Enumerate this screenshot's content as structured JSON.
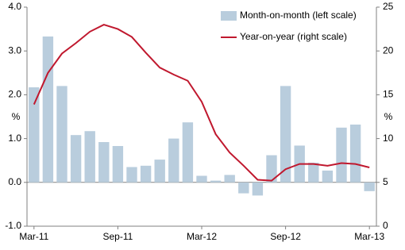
{
  "chart_data": {
    "type": "bar-line",
    "categories": [
      "Mar-11",
      null,
      null,
      null,
      null,
      null,
      "Sep-11",
      null,
      null,
      null,
      null,
      null,
      "Mar-12",
      null,
      null,
      null,
      null,
      null,
      "Sep-12",
      null,
      null,
      null,
      null,
      null,
      "Mar-13"
    ],
    "series": [
      {
        "name": "Month-on-month (left scale)",
        "type": "bar",
        "axis": "y",
        "color": "#b9cddd",
        "values": [
          2.17,
          3.33,
          2.2,
          1.08,
          1.17,
          0.92,
          0.83,
          0.35,
          0.38,
          0.52,
          1.0,
          1.37,
          0.15,
          0.04,
          0.17,
          -0.25,
          -0.3,
          0.62,
          2.2,
          0.84,
          0.45,
          0.27,
          1.25,
          1.32,
          -0.2
        ]
      },
      {
        "name": "Year-on-year (right scale)",
        "type": "line",
        "axis": "y2",
        "color": "#c0182e",
        "values": [
          13.9,
          17.5,
          19.7,
          20.9,
          22.2,
          23.0,
          22.5,
          21.6,
          19.8,
          18.1,
          17.3,
          16.6,
          14.2,
          10.5,
          8.4,
          6.9,
          5.3,
          5.2,
          6.5,
          7.1,
          7.1,
          6.9,
          7.2,
          7.1,
          6.7
        ]
      }
    ],
    "ylabel": "%",
    "y2label": "%",
    "ylim": [
      -1,
      4
    ],
    "yticks": [
      {
        "value": -1,
        "label": "-1.0"
      },
      {
        "value": 0,
        "label": "0.0"
      },
      {
        "value": 1,
        "label": "1.0"
      },
      {
        "value": 2,
        "label": "2.0"
      },
      {
        "value": 3,
        "label": "3.0"
      },
      {
        "value": 4,
        "label": "4.0"
      }
    ],
    "y2lim": [
      0,
      25
    ],
    "y2ticks": [
      0,
      5,
      10,
      15,
      20,
      25
    ],
    "grid": false,
    "legend": "top-right"
  }
}
